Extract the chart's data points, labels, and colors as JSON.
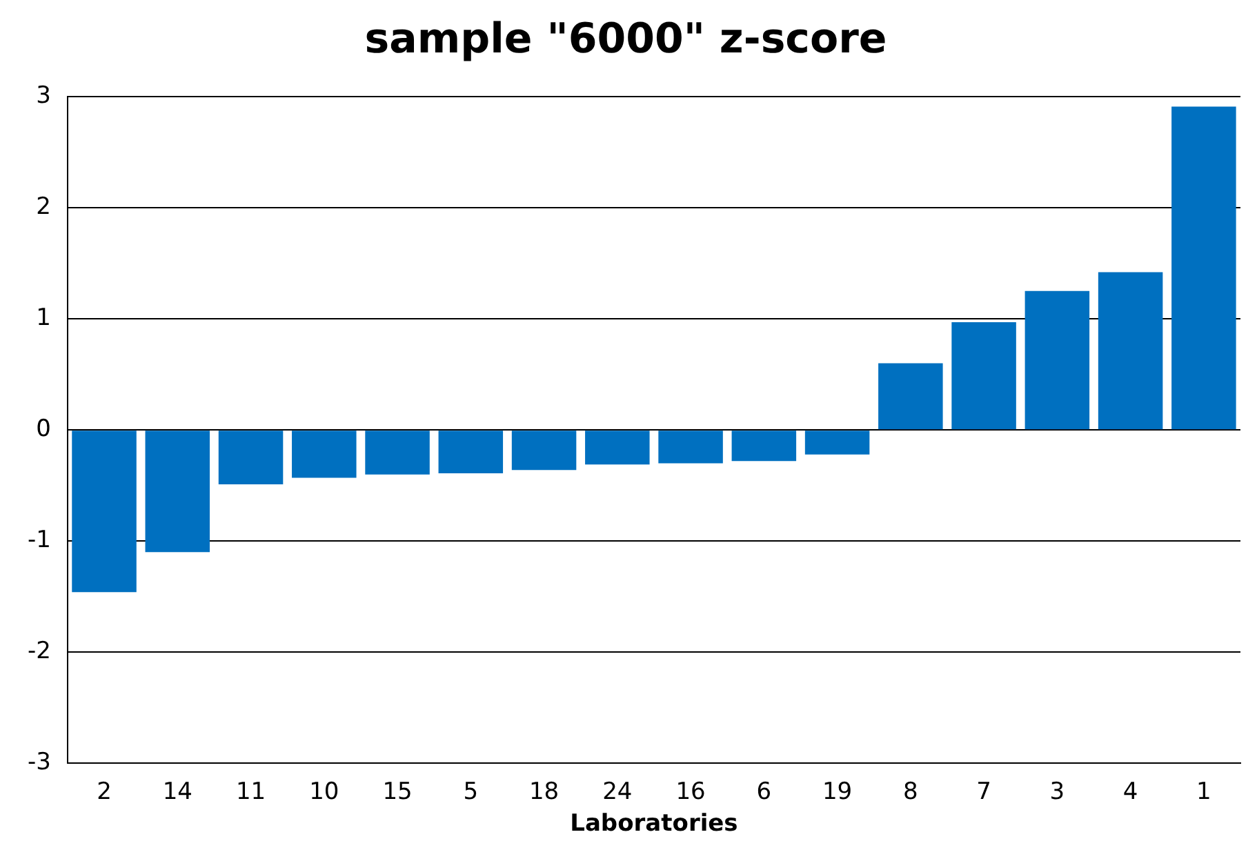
{
  "chart_data": {
    "type": "bar",
    "title": "sample \"6000\" z-score",
    "xlabel": "Laboratories",
    "categories": [
      "2",
      "14",
      "11",
      "10",
      "15",
      "5",
      "18",
      "24",
      "16",
      "6",
      "19",
      "8",
      "7",
      "3",
      "4",
      "1"
    ],
    "values": [
      -1.46,
      -1.1,
      -0.49,
      -0.43,
      -0.4,
      -0.39,
      -0.36,
      -0.31,
      -0.3,
      -0.28,
      -0.22,
      0.6,
      0.97,
      1.25,
      1.42,
      2.91
    ],
    "color": "#0070c0",
    "ylim": [
      -3,
      3
    ],
    "yticks": [
      -3,
      -2,
      -1,
      0,
      1,
      2,
      3
    ],
    "grid": "y",
    "legend": false
  }
}
